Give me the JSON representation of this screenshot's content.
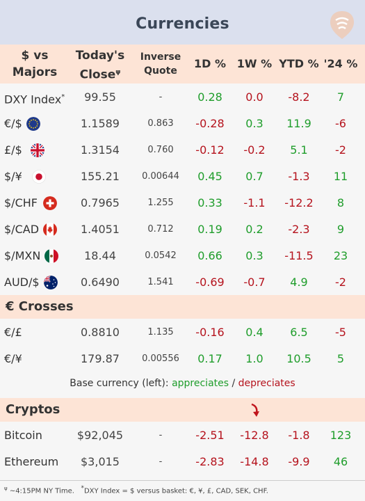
{
  "title": "Currencies",
  "headers": {
    "col1": "$ vs Majors",
    "col2": "Today's Close",
    "col2_sup": "ψ",
    "col3": "Inverse Quote",
    "d1": "1D %",
    "w1": "1W %",
    "ytd": "YTD %",
    "y24": "'24 %"
  },
  "majors": [
    {
      "label": "DXY Index",
      "sup": "*",
      "flag": "",
      "close": "99.55",
      "inverse": "-",
      "d1": "0.28",
      "w1": "0.0",
      "ytd": "-8.2",
      "y24": "7",
      "colors": [
        "pos",
        "neg",
        "neg",
        "pos"
      ]
    },
    {
      "label": "€/$",
      "flag": "eu-flag",
      "close": "1.1589",
      "inverse": "0.863",
      "d1": "-0.28",
      "w1": "0.3",
      "ytd": "11.9",
      "y24": "-6",
      "colors": [
        "neg",
        "pos",
        "pos",
        "neg"
      ]
    },
    {
      "label": "£/$",
      "flag": "uk-flag",
      "close": "1.3154",
      "inverse": "0.760",
      "d1": "-0.12",
      "w1": "-0.2",
      "ytd": "5.1",
      "y24": "-2",
      "colors": [
        "neg",
        "neg",
        "pos",
        "neg"
      ]
    },
    {
      "label": "$/¥",
      "flag": "japan-flag",
      "close": "155.21",
      "inverse": "0.00644",
      "d1": "0.45",
      "w1": "0.7",
      "ytd": "-1.3",
      "y24": "11",
      "colors": [
        "pos",
        "pos",
        "neg",
        "pos"
      ]
    },
    {
      "label": "$/CHF",
      "flag": "swiss-flag",
      "close": "0.7965",
      "inverse": "1.255",
      "d1": "0.33",
      "w1": "-1.1",
      "ytd": "-12.2",
      "y24": "8",
      "colors": [
        "pos",
        "neg",
        "neg",
        "pos"
      ]
    },
    {
      "label": "$/CAD",
      "flag": "canada-flag",
      "close": "1.4051",
      "inverse": "0.712",
      "d1": "0.19",
      "w1": "0.2",
      "ytd": "-2.3",
      "y24": "9",
      "colors": [
        "pos",
        "pos",
        "neg",
        "pos"
      ]
    },
    {
      "label": "$/MXN",
      "flag": "mexico-flag",
      "close": "18.44",
      "inverse": "0.0542",
      "d1": "0.66",
      "w1": "0.3",
      "ytd": "-11.5",
      "y24": "23",
      "colors": [
        "pos",
        "pos",
        "neg",
        "pos"
      ]
    },
    {
      "label": "AUD/$",
      "flag": "australia-flag",
      "close": "0.6490",
      "inverse": "1.541",
      "d1": "-0.69",
      "w1": "-0.7",
      "ytd": "4.9",
      "y24": "-2",
      "colors": [
        "neg",
        "neg",
        "pos",
        "neg"
      ]
    }
  ],
  "crosses_title": "€ Crosses",
  "crosses": [
    {
      "label": "€/£",
      "close": "0.8810",
      "inverse": "1.135",
      "d1": "-0.16",
      "w1": "0.4",
      "ytd": "6.5",
      "y24": "-5",
      "colors": [
        "neg",
        "pos",
        "pos",
        "neg"
      ]
    },
    {
      "label": "€/¥",
      "close": "179.87",
      "inverse": "0.00556",
      "d1": "0.17",
      "w1": "1.0",
      "ytd": "10.5",
      "y24": "5",
      "colors": [
        "pos",
        "pos",
        "pos",
        "pos"
      ]
    }
  ],
  "note": {
    "prefix": "Base currency (left):",
    "appreciates": "appreciates",
    "sep": "/",
    "depreciates": "depreciates"
  },
  "cryptos_title": "Cryptos",
  "cryptos": [
    {
      "label": "Bitcoin",
      "close": "$92,045",
      "inverse": "-",
      "d1": "-2.51",
      "w1": "-12.8",
      "ytd": "-1.8",
      "y24": "123",
      "colors": [
        "neg",
        "neg",
        "neg",
        "pos"
      ]
    },
    {
      "label": "Ethereum",
      "close": "$3,015",
      "inverse": "-",
      "d1": "-2.83",
      "w1": "-14.8",
      "ytd": "-9.9",
      "y24": "46",
      "colors": [
        "neg",
        "neg",
        "neg",
        "pos"
      ]
    }
  ],
  "footer": {
    "sym1": "ψ",
    "text1": "~4:15PM NY Time.",
    "sym2": "*",
    "text2": "DXY Index = $ versus basket: €, ¥, £, CAD, SEK, CHF."
  },
  "colors": {
    "positive": "#1f9d2b",
    "negative": "#b5131d",
    "header_bg": "#fde4d6",
    "title_bg": "#dbe0ee"
  }
}
